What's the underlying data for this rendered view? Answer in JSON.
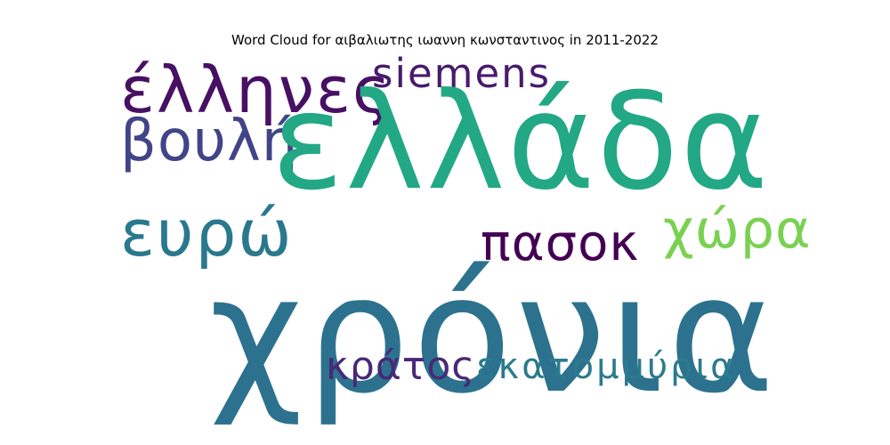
{
  "chart_data": {
    "type": "wordcloud",
    "title": "Word Cloud for αιβαλιωτης ιωαννη κωνσταντινος in 2011-2022",
    "words": [
      {
        "text": "ελλάδα",
        "color": "#22a884"
      },
      {
        "text": "χρόνια",
        "color": "#2c728e"
      },
      {
        "text": "έλληνες",
        "color": "#471063"
      },
      {
        "text": "siemens",
        "color": "#481a6c"
      },
      {
        "text": "βουλή",
        "color": "#414487"
      },
      {
        "text": "ευρώ",
        "color": "#2a788e"
      },
      {
        "text": "πασοκ",
        "color": "#440154"
      },
      {
        "text": "χώρα",
        "color": "#7ad151"
      },
      {
        "text": "κράτος",
        "color": "#482878"
      },
      {
        "text": "εκατομμύρια",
        "color": "#2a7b8e"
      }
    ]
  }
}
